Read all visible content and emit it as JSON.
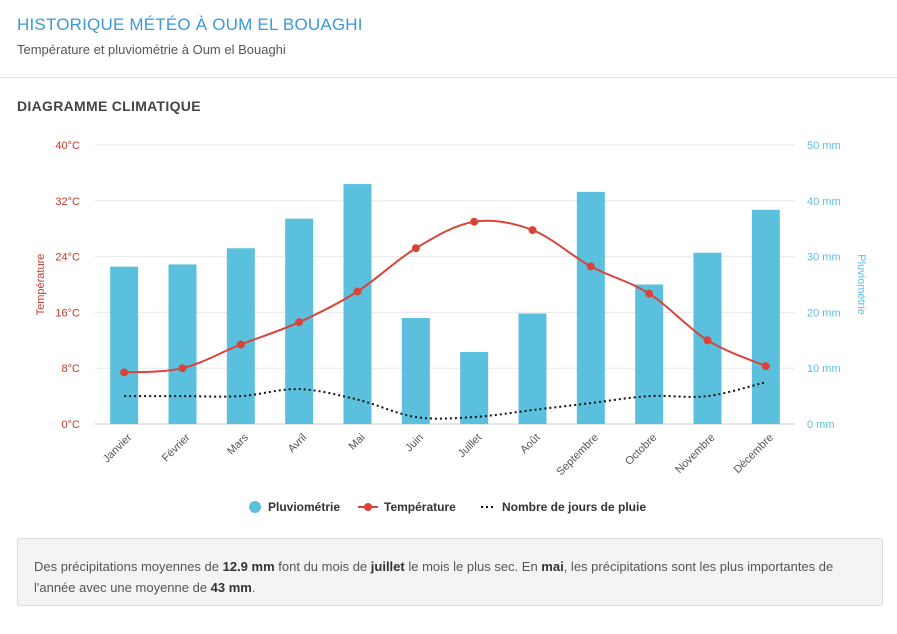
{
  "header": {
    "title": "HISTORIQUE MÉTÉO À OUM EL BOUAGHI",
    "subtitle": "Température et pluviométrie à Oum el Bouaghi"
  },
  "section": {
    "title": "DIAGRAMME CLIMATIQUE"
  },
  "colors": {
    "bar": "#5bc0de",
    "temperature": "#d9443a",
    "rain_days": "#111111",
    "left_axis": "#c0392b",
    "right_axis": "#5bc0de"
  },
  "chart_data": {
    "type": "bar",
    "categories": [
      "Janvier",
      "Février",
      "Mars",
      "Avril",
      "Mai",
      "Juin",
      "Juillet",
      "Août",
      "Septembre",
      "Octobre",
      "Novembre",
      "Décembre"
    ],
    "series": [
      {
        "name": "Pluviométrie",
        "type": "bar",
        "axis": "right",
        "values": [
          28.2,
          28.6,
          31.5,
          36.8,
          43,
          19,
          12.9,
          19.8,
          41.6,
          25,
          30.7,
          38.4
        ]
      },
      {
        "name": "Température",
        "type": "line",
        "axis": "left",
        "values": [
          7.4,
          8,
          11.4,
          14.6,
          19,
          25.2,
          29,
          27.8,
          22.6,
          18.7,
          12,
          8.3
        ]
      },
      {
        "name": "Nombre de jours de pluie",
        "type": "line",
        "axis": "left",
        "style": "dotted",
        "values": [
          4,
          4,
          4,
          5,
          3.5,
          1,
          1,
          2,
          3,
          4,
          4,
          6
        ]
      }
    ],
    "left_axis": {
      "label": "Température",
      "ticks": [
        "0°C",
        "8°C",
        "16°C",
        "24°C",
        "32°C",
        "40°C"
      ],
      "range": [
        0,
        40
      ]
    },
    "right_axis": {
      "label": "Pluviométrie",
      "ticks": [
        "0 mm",
        "10 mm",
        "20 mm",
        "30 mm",
        "40 mm",
        "50 mm"
      ],
      "range": [
        0,
        50
      ]
    },
    "legend": {
      "placement": "bottom",
      "items": [
        "Pluviométrie",
        "Température",
        "Nombre de jours de pluie"
      ]
    },
    "grid": true
  },
  "info": {
    "t1": "Des précipitations moyennes de ",
    "v1": "12.9 mm",
    "t2": " font du mois de ",
    "v2": "juillet",
    "t3": " le mois le plus sec. En ",
    "v3": "mai",
    "t4": ", les précipitations sont les plus importantes de l'année avec une moyenne de ",
    "v4": "43 mm",
    "t5": "."
  }
}
